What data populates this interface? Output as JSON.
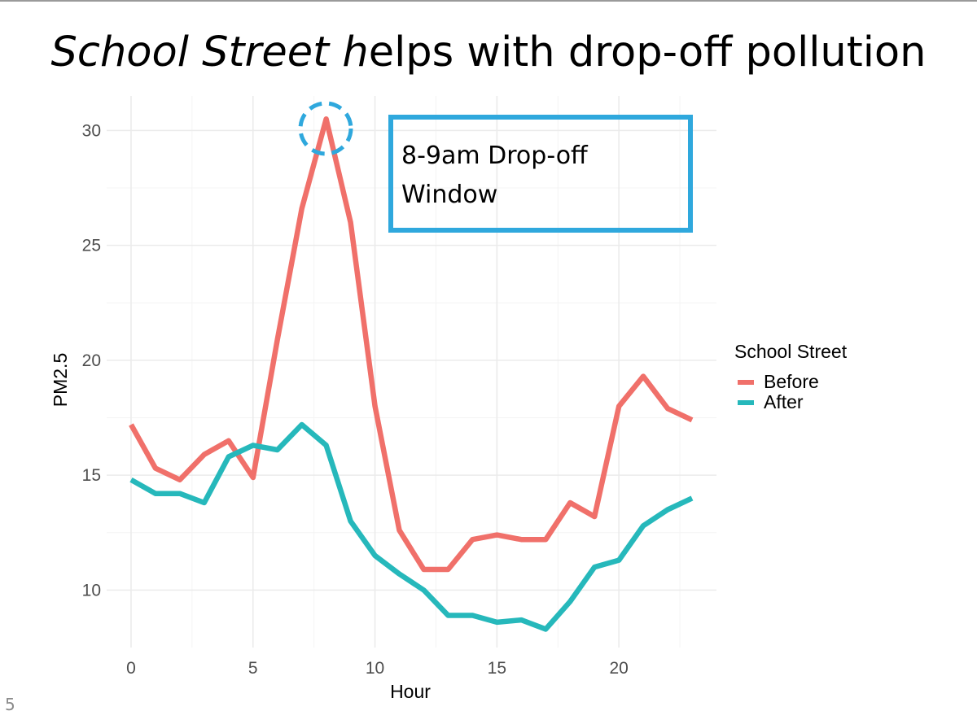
{
  "slide": {
    "title_italic": "School Street h",
    "title_rest": "elps with drop-off pollution",
    "number": "5"
  },
  "colors": {
    "before": "#f0706a",
    "after": "#26b8bb",
    "annotation": "#2fa8dd",
    "grid": "#ebebeb"
  },
  "annotation": {
    "line1": "8-9am Drop-off",
    "line2": "Window"
  },
  "chart_data": {
    "type": "line",
    "title": "School Street helps with drop-off pollution",
    "xlabel": "Hour",
    "ylabel": "PM2.5",
    "xlim": [
      -1,
      24
    ],
    "ylim": [
      7.5,
      31.5
    ],
    "xticks": [
      0,
      5,
      10,
      15,
      20
    ],
    "yticks": [
      10,
      15,
      20,
      25,
      30
    ],
    "x": [
      0,
      1,
      2,
      3,
      4,
      5,
      6,
      7,
      8,
      9,
      10,
      11,
      12,
      13,
      14,
      15,
      16,
      17,
      18,
      19,
      20,
      21,
      22,
      23
    ],
    "legend_title": "School Street",
    "legend_position": "right",
    "series": [
      {
        "name": "Before",
        "color": "#f0706a",
        "values": [
          17.2,
          15.3,
          14.8,
          15.9,
          16.5,
          14.9,
          20.9,
          26.6,
          30.5,
          26.0,
          18.0,
          12.6,
          10.9,
          10.9,
          12.2,
          12.4,
          12.2,
          12.2,
          13.8,
          13.2,
          18.0,
          19.3,
          17.9,
          17.4
        ]
      },
      {
        "name": "After",
        "color": "#26b8bb",
        "values": [
          14.8,
          14.2,
          14.2,
          13.8,
          15.8,
          16.3,
          16.1,
          17.2,
          16.3,
          13.0,
          11.5,
          10.7,
          10.0,
          8.9,
          8.9,
          8.6,
          8.7,
          8.3,
          9.5,
          11.0,
          11.3,
          12.8,
          13.5,
          14.0
        ]
      }
    ]
  }
}
